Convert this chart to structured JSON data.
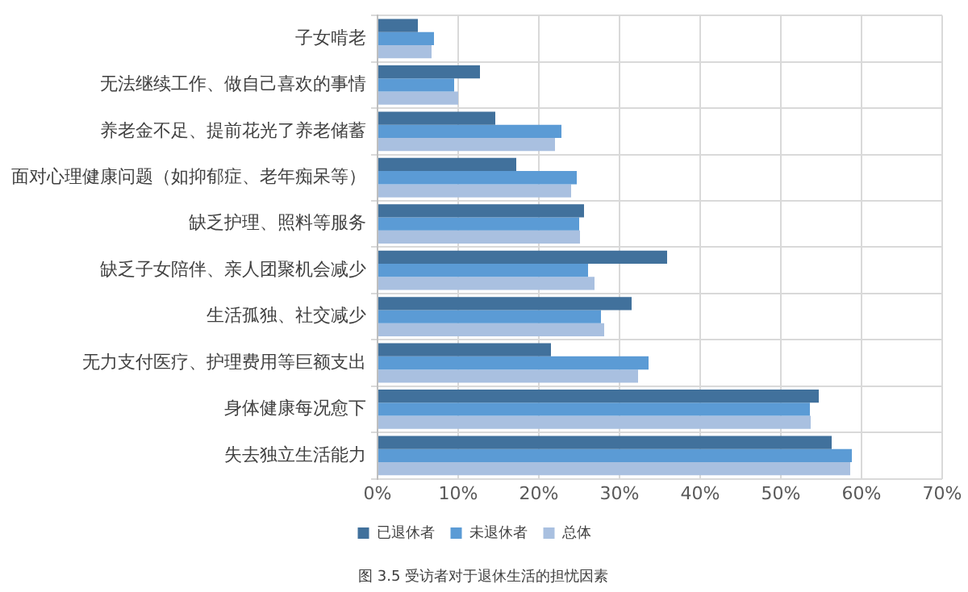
{
  "chart_data": {
    "type": "bar",
    "orientation": "horizontal",
    "categories": [
      "子女啃老",
      "无法继续工作、做自己喜欢的事情",
      "养老金不足、提前花光了养老储蓄",
      "面对心理健康问题（如抑郁症、老年痴呆等）",
      "缺乏护理、照料等服务",
      "缺乏子女陪伴、亲人团聚机会减少",
      "生活孤独、社交减少",
      "无力支付医疗、护理费用等巨额支出",
      "身体健康每况愈下",
      "失去独立生活能力"
    ],
    "series": [
      {
        "name": "已退休者",
        "color": "#41719c",
        "values": [
          5.0,
          12.7,
          14.6,
          17.2,
          25.6,
          35.9,
          31.5,
          21.5,
          54.7,
          56.3
        ]
      },
      {
        "name": "未退休者",
        "color": "#5b9bd5",
        "values": [
          7.0,
          9.5,
          22.8,
          24.7,
          25.0,
          26.1,
          27.7,
          33.6,
          53.6,
          58.8
        ]
      },
      {
        "name": "总体",
        "color": "#a9c0e0",
        "values": [
          6.7,
          10.0,
          22.0,
          24.0,
          25.1,
          26.9,
          28.1,
          32.3,
          53.7,
          58.6
        ]
      }
    ],
    "xlim": [
      0,
      70
    ],
    "xticks": [
      {
        "value": 0,
        "label": "0%"
      },
      {
        "value": 10,
        "label": "10%"
      },
      {
        "value": 20,
        "label": "20%"
      },
      {
        "value": 30,
        "label": "30%"
      },
      {
        "value": 40,
        "label": "40%"
      },
      {
        "value": 50,
        "label": "50%"
      },
      {
        "value": 60,
        "label": "60%"
      },
      {
        "value": 70,
        "label": "70%"
      }
    ],
    "grid": true,
    "legend": "bottom",
    "annotations": [
      "图 3.5 受访者对于退休生活的担忧因素"
    ]
  }
}
